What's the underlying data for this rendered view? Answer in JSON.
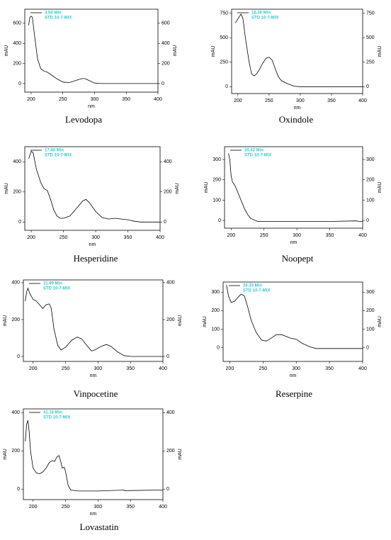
{
  "chart_data": [
    {
      "type": "line",
      "title": "Levodopa",
      "annotation": "STD 10-7-MIX",
      "xlabel": "nm",
      "ylabel": "mAU",
      "y2label": "mAU",
      "xlim": [
        190,
        400
      ],
      "xticks": [
        200,
        250,
        300,
        350,
        400
      ],
      "ylim": [
        -85,
        740
      ],
      "yticks": [
        0,
        200,
        400,
        600
      ],
      "y2lim": [
        -85,
        740
      ],
      "y2ticks": [
        0,
        200,
        400,
        600
      ],
      "x": [
        196,
        198,
        200,
        202,
        205,
        210,
        215,
        220,
        225,
        230,
        240,
        250,
        260,
        270,
        280,
        285,
        290,
        300,
        310,
        350,
        400
      ],
      "series": [
        {
          "name": "3.50 Min",
          "color": "#000000",
          "values": [
            580,
            660,
            670,
            660,
            500,
            250,
            150,
            125,
            115,
            95,
            50,
            15,
            10,
            30,
            50,
            50,
            35,
            5,
            0,
            0,
            0
          ]
        }
      ]
    },
    {
      "type": "line",
      "title": "Oxindole",
      "annotation": "STD 10-7-MIX",
      "xlabel": "nm",
      "ylabel": "mAU",
      "y2label": "mAU",
      "xlim": [
        190,
        400
      ],
      "xticks": [
        200,
        250,
        300,
        350,
        400
      ],
      "ylim": [
        -70,
        790
      ],
      "yticks": [
        0,
        250,
        500,
        750
      ],
      "y2lim": [
        -70,
        790
      ],
      "y2ticks": [
        0,
        250,
        500,
        750
      ],
      "x": [
        196,
        200,
        205,
        208,
        212,
        218,
        222,
        226,
        230,
        235,
        240,
        245,
        250,
        255,
        260,
        265,
        270,
        275,
        280,
        290,
        300,
        400
      ],
      "series": [
        {
          "name": "16.26 Min",
          "color": "#000000",
          "values": [
            650,
            690,
            740,
            700,
            500,
            250,
            130,
            110,
            130,
            180,
            240,
            290,
            300,
            270,
            180,
            100,
            60,
            45,
            30,
            5,
            0,
            0
          ]
        }
      ]
    },
    {
      "type": "line",
      "title": "Hesperidine",
      "annotation": "STD 10-7-MIX",
      "xlabel": "nm",
      "ylabel": "mAU",
      "y2label": "mAU",
      "xlim": [
        190,
        400
      ],
      "xticks": [
        200,
        250,
        300,
        350,
        400
      ],
      "ylim": [
        -55,
        500
      ],
      "yticks": [
        0,
        200,
        400
      ],
      "y2lim": [
        -55,
        500
      ],
      "y2ticks": [
        0,
        200,
        400
      ],
      "x": [
        196,
        200,
        203,
        208,
        215,
        220,
        225,
        230,
        235,
        240,
        245,
        250,
        260,
        270,
        280,
        285,
        290,
        300,
        310,
        320,
        330,
        340,
        350,
        360,
        370,
        400
      ],
      "series": [
        {
          "name": "17.40 Min",
          "color": "#000000",
          "values": [
            420,
            470,
            460,
            350,
            260,
            220,
            210,
            150,
            80,
            40,
            25,
            25,
            40,
            90,
            140,
            150,
            130,
            70,
            30,
            20,
            25,
            20,
            15,
            5,
            0,
            0
          ]
        }
      ]
    },
    {
      "type": "line",
      "title": "Noopept",
      "annotation": "STD 10-7-MIX",
      "xlabel": "nm",
      "ylabel": "mAU",
      "y2label": "mAU",
      "xlim": [
        190,
        400
      ],
      "xticks": [
        200,
        250,
        300,
        350,
        400
      ],
      "ylim": [
        -38,
        363
      ],
      "yticks": [
        0,
        100,
        200,
        300
      ],
      "y2lim": [
        -38,
        363
      ],
      "y2ticks": [
        0,
        100,
        200,
        300
      ],
      "x": [
        196,
        198,
        200,
        202,
        206,
        210,
        215,
        220,
        225,
        230,
        240,
        250,
        300,
        350,
        390,
        395,
        400
      ],
      "series": [
        {
          "name": "20.43 Min",
          "color": "#000000",
          "values": [
            330,
            300,
            220,
            190,
            170,
            140,
            100,
            60,
            30,
            10,
            -5,
            -5,
            -5,
            -5,
            -2,
            -5,
            -5
          ]
        }
      ]
    },
    {
      "type": "line",
      "title": "Vinpocetine",
      "annotation": "STD 10-7-MIX",
      "xlabel": "nm",
      "ylabel": "mAU",
      "y2label": "mAU",
      "xlim": [
        185,
        400
      ],
      "xticks": [
        200,
        250,
        300,
        350,
        400
      ],
      "ylim": [
        -27,
        415
      ],
      "yticks": [
        0,
        200,
        400
      ],
      "y2lim": [
        -27,
        415
      ],
      "y2ticks": [
        0,
        200,
        400
      ],
      "x": [
        188,
        190,
        192,
        195,
        200,
        205,
        210,
        215,
        220,
        225,
        228,
        232,
        238,
        243,
        250,
        260,
        268,
        275,
        285,
        290,
        295,
        305,
        313,
        320,
        330,
        340,
        350,
        400
      ],
      "series": [
        {
          "name": "31.99 Min",
          "color": "#000000",
          "values": [
            300,
            350,
            370,
            340,
            310,
            300,
            280,
            260,
            280,
            285,
            260,
            150,
            60,
            35,
            50,
            90,
            105,
            95,
            50,
            30,
            35,
            55,
            65,
            55,
            25,
            5,
            0,
            0
          ]
        }
      ]
    },
    {
      "type": "line",
      "title": "Reserpine",
      "annotation": "STD 10-7-MIX",
      "xlabel": "nm",
      "ylabel": "mAU",
      "y2label": "mAU",
      "xlim": [
        190,
        400
      ],
      "xticks": [
        200,
        250,
        300,
        350,
        400
      ],
      "ylim": [
        -75,
        355
      ],
      "yticks": [
        0,
        100,
        200,
        300
      ],
      "y2lim": [
        -75,
        355
      ],
      "y2ticks": [
        0,
        100,
        200,
        300
      ],
      "x": [
        195,
        198,
        202,
        207,
        212,
        217,
        222,
        227,
        232,
        240,
        248,
        255,
        262,
        270,
        278,
        285,
        292,
        300,
        308,
        320,
        330,
        350,
        400
      ],
      "series": [
        {
          "name": "26.33 Min",
          "color": "#000000",
          "values": [
            340,
            280,
            245,
            250,
            270,
            290,
            280,
            220,
            150,
            80,
            40,
            35,
            50,
            70,
            70,
            60,
            50,
            45,
            25,
            5,
            -5,
            -5,
            -5
          ]
        }
      ]
    },
    {
      "type": "line",
      "title": "Lovastatin",
      "annotation": "STD 10-7-MIX",
      "xlabel": "nm",
      "ylabel": "mAU",
      "y2label": "mAU",
      "xlim": [
        185,
        400
      ],
      "xticks": [
        200,
        250,
        300,
        350,
        400
      ],
      "ylim": [
        -55,
        420
      ],
      "yticks": [
        0,
        200,
        400
      ],
      "y2lim": [
        -55,
        420
      ],
      "y2ticks": [
        0,
        200,
        400
      ],
      "x": [
        188,
        190,
        192,
        194,
        196,
        200,
        205,
        210,
        215,
        220,
        225,
        230,
        233,
        237,
        240,
        243,
        245,
        248,
        250,
        254,
        258,
        270,
        300,
        340,
        341,
        400
      ],
      "series": [
        {
          "name": "41.16 Min",
          "color": "#000000",
          "values": [
            250,
            340,
            360,
            300,
            200,
            110,
            85,
            80,
            90,
            110,
            140,
            150,
            145,
            170,
            175,
            140,
            110,
            115,
            90,
            20,
            -5,
            -10,
            -10,
            -5,
            -8,
            -5
          ]
        }
      ]
    }
  ]
}
